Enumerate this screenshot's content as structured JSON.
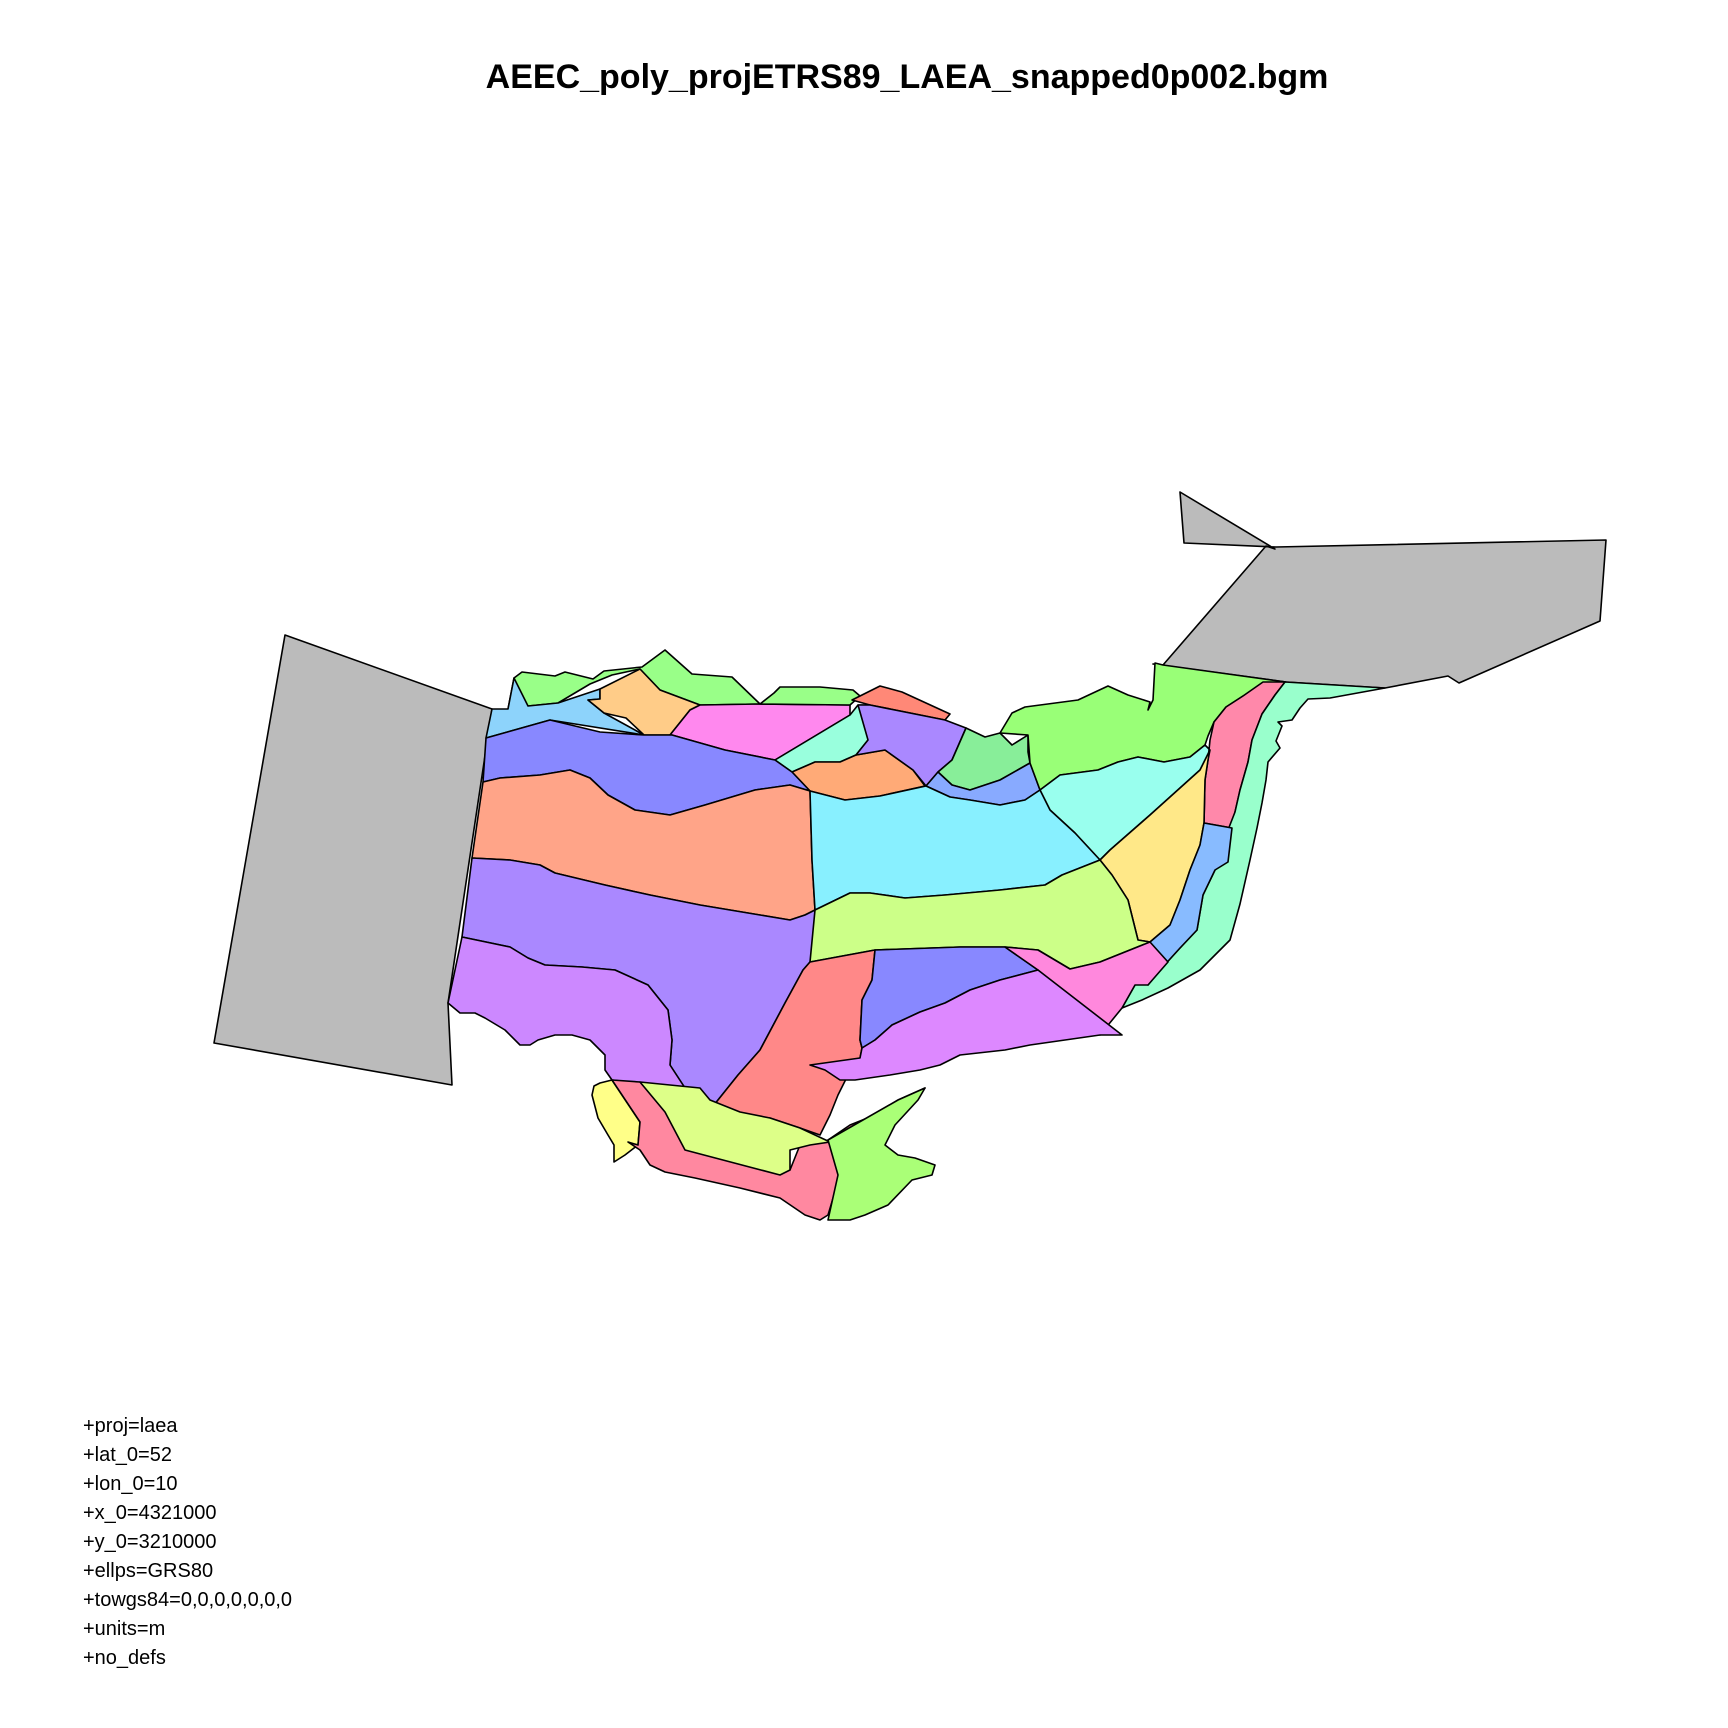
{
  "title": "AEEC_poly_projETRS89_LAEA_snapped0p002.bgm",
  "projection_lines": [
    "+proj=laea",
    "+lat_0=52",
    "+lon_0=10",
    "+x_0=4321000",
    "+y_0=3210000",
    "+ellps=GRS80",
    "+towgs84=0,0,0,0,0,0,0",
    "+units=m",
    "+no_defs"
  ],
  "colors": {
    "boundary": "#bbbbbb",
    "stroke": "#000000"
  },
  "boxes": [
    {
      "id": "boundary-west",
      "fill": "#bbbbbb"
    },
    {
      "id": "boundary-east",
      "fill": "#bbbbbb"
    },
    {
      "id": "box-nw-green-strip",
      "fill": "#99ff88"
    },
    {
      "id": "box-nw-lightblue",
      "fill": "#8dd3fb"
    },
    {
      "id": "box-nw-orange",
      "fill": "#ffcc88"
    },
    {
      "id": "box-n-magenta",
      "fill": "#ff88ee"
    },
    {
      "id": "box-n-green-strip",
      "fill": "#99ff88"
    },
    {
      "id": "box-n-salmon",
      "fill": "#ff8877"
    },
    {
      "id": "box-n-aqua-small",
      "fill": "#99ffdd"
    },
    {
      "id": "box-n-orange-small",
      "fill": "#ffaa77"
    },
    {
      "id": "box-n-purple",
      "fill": "#aa88ff"
    },
    {
      "id": "box-ne-green-small",
      "fill": "#88ee99"
    },
    {
      "id": "box-ne-blue-small",
      "fill": "#88aaff"
    },
    {
      "id": "box-ne-green-large",
      "fill": "#99ff77"
    },
    {
      "id": "box-ne-aqua",
      "fill": "#99ffee"
    },
    {
      "id": "box-ne-pink-strip",
      "fill": "#ff88aa"
    },
    {
      "id": "box-ne-mint-outer",
      "fill": "#99ffcc"
    },
    {
      "id": "box-e-yellow",
      "fill": "#ffe888"
    },
    {
      "id": "box-e-blue-strip",
      "fill": "#88bbff"
    },
    {
      "id": "box-w-blue",
      "fill": "#8888ff"
    },
    {
      "id": "box-w-peach",
      "fill": "#ffa488"
    },
    {
      "id": "box-c-cyan",
      "fill": "#88f0ff"
    },
    {
      "id": "box-c-lime",
      "fill": "#ccff88"
    },
    {
      "id": "box-w-lavender",
      "fill": "#aa88ff"
    },
    {
      "id": "box-sw-violet",
      "fill": "#cc88ff"
    },
    {
      "id": "box-s-red",
      "fill": "#ff8888"
    },
    {
      "id": "box-s-indigo",
      "fill": "#8888ff"
    },
    {
      "id": "box-se-pink",
      "fill": "#ff88dd"
    },
    {
      "id": "box-s-violet-large",
      "fill": "#dd88ff"
    },
    {
      "id": "box-sw-yellow-small",
      "fill": "#ffff88"
    },
    {
      "id": "box-s-rose-strip",
      "fill": "#ff88a0"
    },
    {
      "id": "box-s-yellowgreen",
      "fill": "#ddff88"
    },
    {
      "id": "box-s-green-tip",
      "fill": "#aaff77"
    }
  ]
}
